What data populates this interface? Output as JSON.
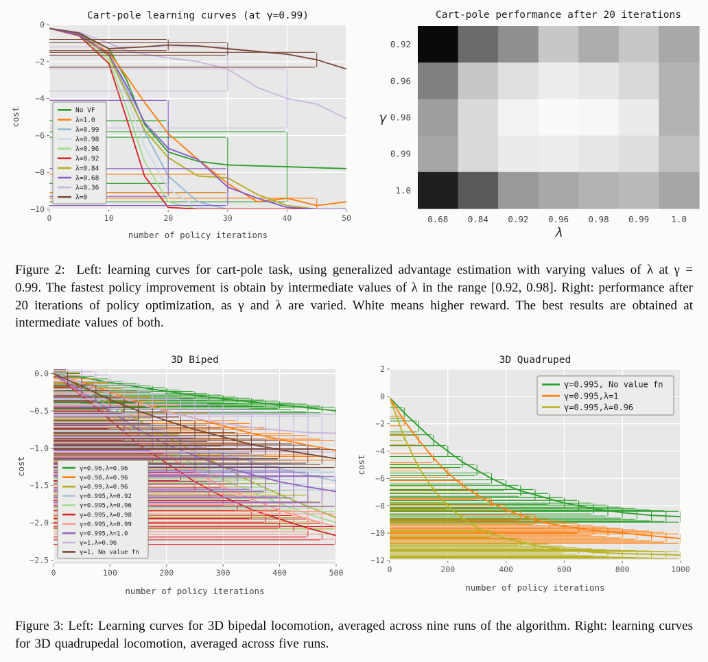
{
  "captions": {
    "figure2": "Figure 2:  Left: learning curves for cart-pole task, using generalized advantage estimation with varying values of λ at γ = 0.99. The fastest policy improvement is obtain by intermediate values of λ in the range [0.92, 0.98]. Right: performance after 20 iterations of policy optimization, as γ and λ are varied. White means higher reward. The best results are obtained at intermediate values of both.",
    "figure3": "Figure 3: Left: Learning curves for 3D bipedal locomotion, averaged across nine runs of the algorithm. Right: learning curves for 3D quadrupedal locomotion, averaged across five runs."
  },
  "chart_data": [
    {
      "type": "line",
      "target": "chart-cartpole-curves",
      "title": "Cart-pole learning curves (at γ=0.99)",
      "xlabel": "number of policy iterations",
      "ylabel": "cost",
      "xlim": [
        0,
        50
      ],
      "ylim": [
        -10,
        0
      ],
      "xticks": [
        0,
        10,
        20,
        30,
        40,
        50
      ],
      "xtl": [
        "0",
        "10",
        "20",
        "30",
        "40",
        "50"
      ],
      "yticks": [
        0,
        -2,
        -4,
        -6,
        -8,
        -10
      ],
      "ytl": [
        "0",
        "−2",
        "−4",
        "−6",
        "−8",
        "−10"
      ],
      "x": [
        0,
        5,
        10,
        13,
        16,
        20,
        25,
        30,
        35,
        40,
        45,
        50
      ],
      "series": [
        {
          "n": "No VF",
          "c": "#2ca02c",
          "v": [
            -0.2,
            -0.5,
            -1.3,
            -3.0,
            -5.4,
            -6.9,
            -7.4,
            -7.6,
            -7.65,
            -7.7,
            -7.75,
            -7.8
          ],
          "eb": [
            [
              20,
              -6.9,
              1.7
            ],
            [
              30,
              -7.6,
              1.5
            ],
            [
              40,
              -7.7,
              1.9
            ]
          ]
        },
        {
          "n": "λ=1.0",
          "c": "#ff7f0e",
          "v": [
            -0.2,
            -0.55,
            -1.5,
            -2.8,
            -4.2,
            -5.9,
            -7.3,
            -8.6,
            -9.6,
            -9.4,
            -9.8,
            -9.6
          ],
          "eb": [
            [
              30,
              -8.6,
              0.5
            ],
            [
              45,
              -9.8,
              0.4
            ]
          ]
        },
        {
          "n": "λ=0.99",
          "c": "#92b7d7",
          "v": [
            -0.2,
            -0.55,
            -1.6,
            -3.5,
            -5.8,
            -8.2,
            -9.6,
            -10,
            -10,
            -10,
            -10,
            -10
          ]
        },
        {
          "n": "λ=0.98",
          "c": "#ccd8e8",
          "v": [
            -0.2,
            -0.55,
            -1.7,
            -3.9,
            -6.6,
            -8.9,
            -9.9,
            -10,
            -10,
            -10,
            -10,
            -10
          ]
        },
        {
          "n": "λ=0.96",
          "c": "#9edd8f",
          "v": [
            -0.2,
            -0.6,
            -1.9,
            -4.5,
            -7.4,
            -9.6,
            -10,
            -10,
            -10,
            -10,
            -10,
            -10
          ]
        },
        {
          "n": "λ=0.92",
          "c": "#d62728",
          "v": [
            -0.2,
            -0.6,
            -2.1,
            -5.1,
            -8.2,
            -9.9,
            -10,
            -10,
            -10,
            -10,
            -10,
            -10
          ]
        },
        {
          "n": "λ=0.84",
          "c": "#b3ae24",
          "v": [
            -0.2,
            -0.55,
            -1.7,
            -3.7,
            -5.7,
            -7.2,
            -8.2,
            -8.3,
            -9.2,
            -9.8,
            -10,
            -10
          ]
        },
        {
          "n": "λ=0.68",
          "c": "#8a5bc7",
          "v": [
            -0.2,
            -0.55,
            -1.6,
            -3.3,
            -5.3,
            -6.7,
            -7.3,
            -8.8,
            -9.4,
            -9.9,
            -10,
            -10
          ],
          "eb": [
            [
              20,
              -6.7,
              2.6
            ],
            [
              30,
              -8.8,
              1.0
            ]
          ]
        },
        {
          "n": "λ=0.36",
          "c": "#c9b6dd",
          "v": [
            -0.2,
            -0.4,
            -1.0,
            -1.4,
            -1.6,
            -1.8,
            -2.0,
            -2.4,
            -3.4,
            -4.0,
            -4.3,
            -5.1
          ],
          "eb": [
            [
              30,
              -2.4,
              1.2
            ],
            [
              40,
              -4.0,
              1.6
            ]
          ]
        },
        {
          "n": "λ=0",
          "c": "#7b4a3b",
          "v": [
            -0.2,
            -0.45,
            -1.3,
            -1.25,
            -1.2,
            -1.1,
            -1.15,
            -1.3,
            -1.45,
            -1.6,
            -1.9,
            -2.4
          ],
          "eb": [
            [
              20,
              -1.1,
              0.3
            ],
            [
              30,
              -1.3,
              0.35
            ],
            [
              45,
              -1.9,
              0.4
            ]
          ]
        }
      ]
    },
    {
      "type": "heatmap",
      "target": "chart-cartpole-heatmap",
      "title": "Cart-pole performance after 20 iterations",
      "xlabel": "λ",
      "ylabel": "γ",
      "cols": [
        "0.68",
        "0.84",
        "0.92",
        "0.96",
        "0.98",
        "0.99",
        "1.0"
      ],
      "rows": [
        "0.92",
        "0.96",
        "0.98",
        "0.99",
        "1.0"
      ],
      "values": [
        [
          0.04,
          0.42,
          0.56,
          0.78,
          0.68,
          0.78,
          0.66
        ],
        [
          0.5,
          0.78,
          0.88,
          0.93,
          0.9,
          0.85,
          0.7
        ],
        [
          0.62,
          0.85,
          0.95,
          0.98,
          0.97,
          0.92,
          0.7
        ],
        [
          0.65,
          0.85,
          0.92,
          0.93,
          0.9,
          0.87,
          0.75
        ],
        [
          0.12,
          0.35,
          0.6,
          0.66,
          0.7,
          0.73,
          0.65
        ]
      ]
    },
    {
      "type": "line",
      "target": "chart-biped",
      "title": "3D Biped",
      "xlabel": "number of policy iterations",
      "ylabel": "cost",
      "xlim": [
        0,
        500
      ],
      "ylim": [
        -2.55,
        0.06
      ],
      "xticks": [
        0,
        100,
        200,
        300,
        400,
        500
      ],
      "xtl": [
        "0",
        "100",
        "200",
        "300",
        "400",
        "500"
      ],
      "yticks": [
        0,
        -0.5,
        -1,
        -1.5,
        -2,
        -2.5
      ],
      "ytl": [
        "0.0",
        "−0.5",
        "−1.0",
        "−1.5",
        "−2.0",
        "−2.5"
      ],
      "x": [
        0,
        50,
        100,
        150,
        200,
        250,
        300,
        350,
        400,
        450,
        500
      ],
      "series": [
        {
          "n": "γ=0.96,λ=0.96",
          "c": "#2ca02c",
          "v": [
            0,
            -0.05,
            -0.12,
            -0.18,
            -0.24,
            -0.29,
            -0.34,
            -0.38,
            -0.42,
            -0.46,
            -0.5
          ],
          "e": 0.05
        },
        {
          "n": "γ=0.98,λ=0.96",
          "c": "#ff7f0e",
          "v": [
            0,
            -0.12,
            -0.25,
            -0.38,
            -0.5,
            -0.6,
            -0.7,
            -0.8,
            -0.88,
            -0.96,
            -1.03
          ],
          "e": 0.13
        },
        {
          "n": "γ=0.99,λ=0.96",
          "c": "#b3ae24",
          "v": [
            0,
            -0.18,
            -0.4,
            -0.62,
            -0.85,
            -1.05,
            -1.25,
            -1.45,
            -1.62,
            -1.78,
            -1.93
          ],
          "e": 0.15
        },
        {
          "n": "γ=0.995,λ=0.92",
          "c": "#a8c4de",
          "v": [
            0,
            -0.22,
            -0.45,
            -0.65,
            -0.82,
            -0.97,
            -1.08,
            -1.18,
            -1.27,
            -1.36,
            -1.44
          ],
          "e": 0.12
        },
        {
          "n": "γ=0.995,λ=0.96",
          "c": "#9edd8f",
          "v": [
            0,
            -0.25,
            -0.52,
            -0.78,
            -1.02,
            -1.22,
            -1.42,
            -1.58,
            -1.74,
            -1.88,
            -2.0
          ],
          "e": 0.15
        },
        {
          "n": "γ=0.995,λ=0.98",
          "c": "#d62728",
          "v": [
            0,
            -0.3,
            -0.62,
            -0.95,
            -1.2,
            -1.45,
            -1.65,
            -1.82,
            -1.95,
            -2.07,
            -2.17
          ],
          "e": 0.12
        },
        {
          "n": "γ=0.995,λ=0.99",
          "c": "#ff9896",
          "v": [
            0,
            -0.27,
            -0.55,
            -0.85,
            -1.1,
            -1.32,
            -1.52,
            -1.68,
            -1.83,
            -1.95,
            -2.05
          ],
          "e": 0.17
        },
        {
          "n": "γ=0.995,λ=1.0",
          "c": "#9467bd",
          "v": [
            0,
            -0.25,
            -0.5,
            -0.75,
            -0.95,
            -1.1,
            -1.25,
            -1.35,
            -1.45,
            -1.52,
            -1.58
          ],
          "e": 0.2
        },
        {
          "n": "γ=1,λ=0.96",
          "c": "#c9b6dd",
          "v": [
            0,
            -0.13,
            -0.27,
            -0.4,
            -0.52,
            -0.6,
            -0.67,
            -0.72,
            -0.76,
            -0.79,
            -0.8
          ],
          "e": 0.25
        },
        {
          "n": "γ=1, No value fn",
          "c": "#7b4a3b",
          "v": [
            0,
            -0.17,
            -0.35,
            -0.5,
            -0.63,
            -0.75,
            -0.85,
            -0.95,
            -1.02,
            -1.08,
            -1.14
          ],
          "e": 0.12
        }
      ]
    },
    {
      "type": "line",
      "target": "chart-quadruped",
      "title": "3D Quadruped",
      "xlabel": "number of policy iterations",
      "ylabel": "cost",
      "xlim": [
        0,
        1000
      ],
      "ylim": [
        -12,
        2
      ],
      "xticks": [
        0,
        200,
        400,
        600,
        800,
        1000
      ],
      "xtl": [
        "0",
        "200",
        "400",
        "600",
        "800",
        "1000"
      ],
      "yticks": [
        2,
        0,
        -2,
        -4,
        -6,
        -8,
        -10,
        -12
      ],
      "ytl": [
        "2",
        "0",
        "−2",
        "−4",
        "−6",
        "−8",
        "−10",
        "−12"
      ],
      "x": [
        0,
        50,
        100,
        150,
        200,
        250,
        300,
        350,
        400,
        450,
        500,
        550,
        600,
        650,
        700,
        750,
        800,
        850,
        900,
        950,
        1000
      ],
      "series": [
        {
          "n": "γ=0.995, No value fn",
          "c": "#2ca02c",
          "v": [
            -0.1,
            -1.2,
            -2.2,
            -3.2,
            -4.0,
            -4.8,
            -5.4,
            -6.0,
            -6.5,
            -6.9,
            -7.2,
            -7.5,
            -7.8,
            -8.0,
            -8.2,
            -8.35,
            -8.5,
            -8.6,
            -8.7,
            -8.75,
            -8.8
          ],
          "e": 0.4
        },
        {
          "n": "γ=0.995,λ=1",
          "c": "#ff7f0e",
          "v": [
            -0.1,
            -1.8,
            -3.2,
            -4.5,
            -5.6,
            -6.5,
            -7.2,
            -7.8,
            -8.3,
            -8.7,
            -9.0,
            -9.3,
            -9.5,
            -9.65,
            -9.8,
            -9.9,
            -10.0,
            -10.1,
            -10.2,
            -10.3,
            -10.4
          ],
          "e": 0.35
        },
        {
          "n": "γ=0.995,λ=0.96",
          "c": "#b9b324",
          "v": [
            -0.1,
            -3.0,
            -5.2,
            -6.8,
            -8.0,
            -8.9,
            -9.6,
            -10.05,
            -10.4,
            -10.65,
            -10.9,
            -11.05,
            -11.2,
            -11.3,
            -11.4,
            -11.45,
            -11.5,
            -11.52,
            -11.55,
            -11.58,
            -11.6
          ],
          "e": 0.25
        }
      ]
    }
  ]
}
